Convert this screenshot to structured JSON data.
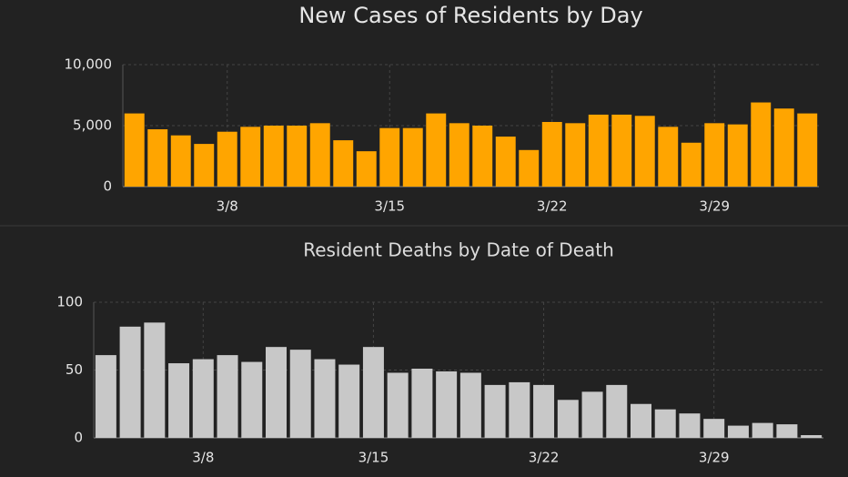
{
  "chart_data": [
    {
      "type": "bar",
      "title": "New Cases of Residents by Day",
      "categories": [
        null,
        null,
        null,
        null,
        "3/8",
        null,
        null,
        null,
        null,
        null,
        null,
        "3/15",
        null,
        null,
        null,
        null,
        null,
        null,
        "3/22",
        null,
        null,
        null,
        null,
        null,
        null,
        "3/29",
        null,
        null,
        null,
        null
      ],
      "values": [
        6000,
        4700,
        4200,
        3500,
        4500,
        4900,
        5000,
        5000,
        5200,
        3800,
        2900,
        4800,
        4800,
        6000,
        5200,
        5000,
        4100,
        3000,
        5300,
        5200,
        5900,
        5900,
        5800,
        4900,
        3600,
        5200,
        5100,
        6900,
        6400,
        6000
      ],
      "color": "#ffa500",
      "ylim": [
        0,
        10000
      ],
      "yticks": [
        0,
        {
          "value": 5000,
          "label": "5,000"
        },
        {
          "value": 10000,
          "label": "10,000"
        }
      ],
      "grid": true
    },
    {
      "type": "bar",
      "title": "Resident Deaths by Date of Death",
      "categories": [
        null,
        null,
        null,
        null,
        "3/8",
        null,
        null,
        null,
        null,
        null,
        null,
        "3/15",
        null,
        null,
        null,
        null,
        null,
        null,
        "3/22",
        null,
        null,
        null,
        null,
        null,
        null,
        "3/29",
        null,
        null,
        null,
        null
      ],
      "values": [
        61,
        82,
        85,
        55,
        58,
        61,
        56,
        67,
        65,
        58,
        54,
        67,
        48,
        51,
        49,
        48,
        39,
        41,
        39,
        28,
        34,
        39,
        25,
        21,
        18,
        14,
        9,
        11,
        10,
        2
      ],
      "color": "#c8c8c8",
      "ylim": [
        0,
        100
      ],
      "yticks": [
        0,
        50,
        100
      ],
      "grid": true
    }
  ]
}
